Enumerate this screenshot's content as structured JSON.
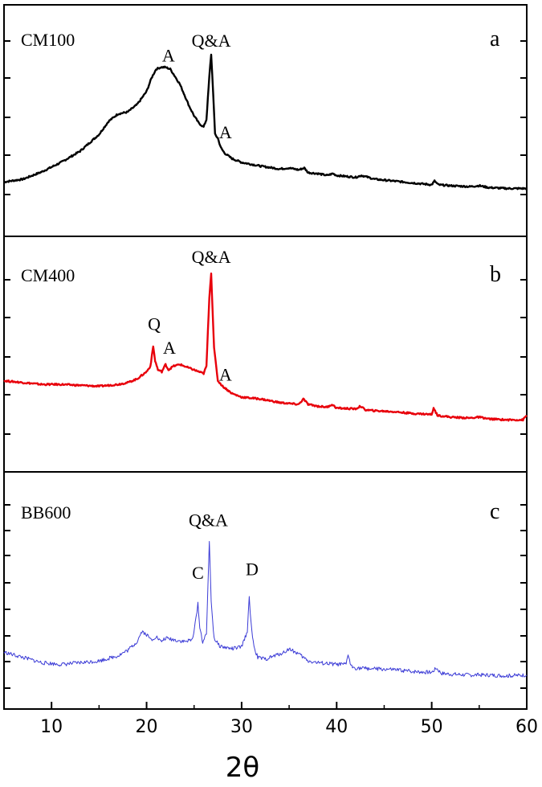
{
  "chart_data": [
    {
      "type": "line",
      "name": "CM100",
      "panel_letter": "a",
      "color": "#000000",
      "xlim": [
        5,
        60
      ],
      "ylim": [
        0,
        100
      ],
      "x": [
        5,
        7,
        9,
        11,
        13,
        15,
        16,
        17,
        18,
        19,
        20,
        20.5,
        21,
        21.5,
        22,
        22.5,
        23,
        23.5,
        24,
        24.5,
        25,
        25.5,
        26,
        26.3,
        26.6,
        26.8,
        27,
        27.2,
        27.5,
        27.8,
        28.2,
        29,
        30,
        32,
        34,
        35,
        36,
        36.6,
        37,
        38,
        39,
        39.6,
        40,
        42,
        42.6,
        44,
        46,
        48,
        50,
        50.3,
        50.7,
        52,
        54,
        55,
        56,
        58,
        60
      ],
      "y": [
        14.5,
        16,
        20,
        25,
        31,
        40,
        47,
        51,
        52,
        56,
        63,
        70,
        75,
        76,
        76,
        75,
        71,
        67,
        61,
        55,
        50,
        46,
        44,
        48,
        71,
        83,
        63,
        40,
        38,
        33,
        30,
        27,
        25,
        23,
        21.5,
        22,
        21,
        22,
        19.5,
        19,
        18,
        19,
        18,
        17,
        18,
        16,
        15,
        14,
        13,
        15,
        13,
        12.5,
        12,
        12.5,
        11.5,
        11,
        11
      ],
      "annotations": [
        {
          "text": "A",
          "x": 22.3,
          "y": 79
        },
        {
          "text": "Q&A",
          "x": 26.8,
          "y": 87
        },
        {
          "text": "A",
          "x": 28.3,
          "y": 38
        }
      ]
    },
    {
      "type": "line",
      "name": "CM400",
      "panel_letter": "b",
      "color": "#e8000b",
      "xlim": [
        5,
        60
      ],
      "ylim": [
        0,
        100
      ],
      "x": [
        5,
        7,
        9,
        11,
        13,
        15,
        17,
        18,
        19,
        20,
        20.4,
        20.7,
        20.9,
        21.2,
        21.6,
        22,
        22.3,
        22.8,
        23.5,
        24,
        25,
        26,
        26.3,
        26.6,
        26.8,
        27.1,
        27.5,
        28,
        29,
        30,
        32,
        34,
        36,
        36.5,
        37,
        38,
        39,
        39.5,
        40,
        42,
        42.5,
        43,
        44,
        46,
        48,
        50,
        50.2,
        50.6,
        52,
        54,
        55,
        56,
        58,
        59.6,
        60
      ],
      "y": [
        32,
        31,
        30,
        30,
        29.5,
        29,
        30,
        31,
        33,
        37,
        40,
        51,
        43,
        38,
        37,
        41,
        38,
        40,
        41,
        40,
        38,
        36,
        40,
        78,
        91,
        50,
        32,
        29,
        25,
        23,
        22,
        20,
        19,
        22,
        19,
        18,
        17.5,
        19,
        17,
        16.5,
        18,
        16,
        15.5,
        15,
        14,
        13.5,
        17,
        13,
        12,
        11.5,
        12,
        11,
        10.5,
        10.5,
        13
      ],
      "annotations": [
        {
          "text": "Q",
          "x": 20.8,
          "y": 60
        },
        {
          "text": "A",
          "x": 22.4,
          "y": 47
        },
        {
          "text": "Q&A",
          "x": 26.8,
          "y": 97
        },
        {
          "text": "A",
          "x": 28.3,
          "y": 32
        }
      ]
    },
    {
      "type": "line",
      "name": "BB600",
      "panel_letter": "c",
      "color": "#3b3bd6",
      "xlim": [
        5,
        60
      ],
      "ylim": [
        0,
        100
      ],
      "x": [
        5,
        7,
        9,
        11,
        13,
        15,
        17,
        18,
        19,
        19.5,
        20,
        20.5,
        21,
        21.5,
        22,
        23,
        24,
        24.8,
        25.2,
        25.4,
        25.6,
        25.9,
        26.3,
        26.6,
        26.8,
        27.1,
        27.6,
        28,
        29,
        30,
        30.6,
        30.8,
        31,
        31.3,
        31.7,
        32.5,
        33.5,
        34.5,
        35,
        36,
        37,
        38,
        40,
        41,
        41.2,
        41.5,
        42,
        44,
        46,
        48,
        50,
        50.5,
        51,
        52,
        54,
        56,
        58,
        60
      ],
      "y": [
        26,
        23,
        20,
        19,
        20,
        21,
        24,
        27,
        32,
        38,
        36,
        33,
        35,
        32,
        34,
        33,
        32,
        33,
        45,
        54,
        40,
        32,
        36,
        90,
        55,
        34,
        30,
        29,
        28,
        29,
        38,
        57,
        42,
        29,
        23,
        22,
        24,
        26,
        28,
        25,
        21,
        20,
        19,
        19,
        25,
        18,
        17,
        16.5,
        16,
        15,
        14.5,
        17,
        14,
        13.5,
        13,
        13,
        12.5,
        13
      ],
      "annotations": [
        {
          "text": "Q&A",
          "x": 26.5,
          "y": 98
        },
        {
          "text": "C",
          "x": 25.4,
          "y": 68
        },
        {
          "text": "D",
          "x": 31.1,
          "y": 70
        }
      ]
    }
  ],
  "x_axis": {
    "label": "2θ",
    "ticks": [
      10,
      20,
      30,
      40,
      50,
      60
    ]
  }
}
